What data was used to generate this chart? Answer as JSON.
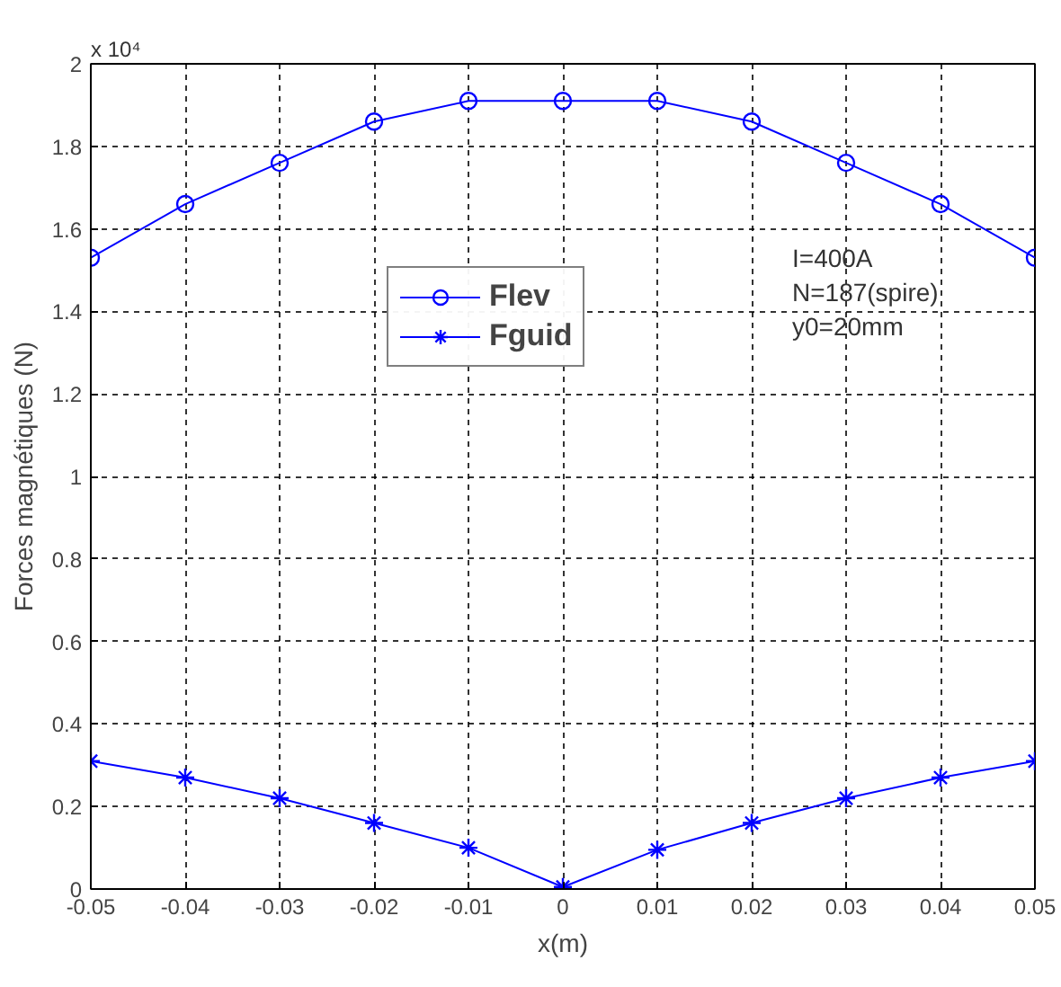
{
  "chart_data": {
    "type": "line",
    "x": [
      -0.05,
      -0.04,
      -0.03,
      -0.02,
      -0.01,
      0,
      0.01,
      0.02,
      0.03,
      0.04,
      0.05
    ],
    "series": [
      {
        "name": "Flev",
        "color": "#0000ff",
        "marker": "circle",
        "values": [
          1.53,
          1.66,
          1.76,
          1.86,
          1.91,
          1.91,
          1.91,
          1.86,
          1.76,
          1.66,
          1.53
        ]
      },
      {
        "name": "Fguid",
        "color": "#0000ff",
        "marker": "cross",
        "values": [
          0.31,
          0.27,
          0.22,
          0.16,
          0.1,
          0.005,
          0.095,
          0.16,
          0.22,
          0.27,
          0.31
        ]
      }
    ],
    "xlabel": "x(m)",
    "ylabel": "Forces magnétiques (N)",
    "xlim": [
      -0.05,
      0.05
    ],
    "ylim": [
      0,
      2
    ],
    "xticks": [
      -0.05,
      -0.04,
      -0.03,
      -0.02,
      -0.01,
      0,
      0.01,
      0.02,
      0.03,
      0.04,
      0.05
    ],
    "yticks": [
      0,
      0.2,
      0.4,
      0.6,
      0.8,
      1,
      1.2,
      1.4,
      1.6,
      1.8,
      2
    ],
    "annotations": [
      "x 10⁴",
      "I=400A",
      "N=187(spire)",
      "y0=20mm"
    ],
    "grid": true,
    "legend": "top",
    "line_style": "solid"
  }
}
